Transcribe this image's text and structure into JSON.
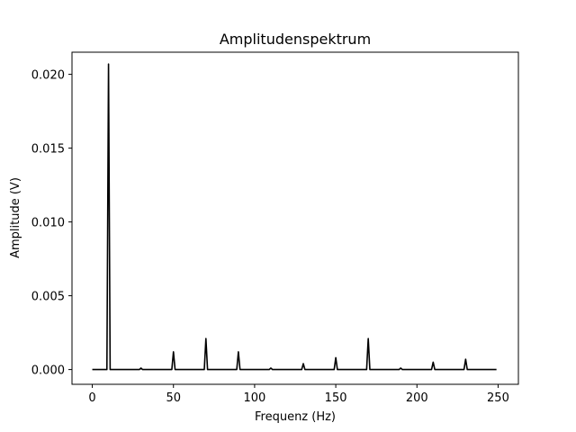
{
  "chart_data": {
    "type": "line",
    "title": "Amplitudenspektrum",
    "xlabel": "Frequenz (Hz)",
    "ylabel": "Amplitude  (V)",
    "xlim": [
      -12.5,
      262.5
    ],
    "ylim": [
      -0.001,
      0.0215
    ],
    "xticks": [
      0,
      50,
      100,
      150,
      200,
      250
    ],
    "xtick_labels": [
      "0",
      "50",
      "100",
      "150",
      "200",
      "250"
    ],
    "yticks": [
      0.0,
      0.005,
      0.01,
      0.015,
      0.02
    ],
    "ytick_labels": [
      "0.000",
      "0.005",
      "0.010",
      "0.015",
      "0.020"
    ],
    "grid": false,
    "legend": "none",
    "series": [
      {
        "color": "#000000",
        "x_range": [
          0,
          249
        ],
        "baseline": 0.0,
        "peaks": [
          {
            "x": 10,
            "y": 0.0207
          },
          {
            "x": 30,
            "y": 0.0001
          },
          {
            "x": 50,
            "y": 0.0012
          },
          {
            "x": 70,
            "y": 0.0021
          },
          {
            "x": 90,
            "y": 0.0012
          },
          {
            "x": 110,
            "y": 0.0001
          },
          {
            "x": 130,
            "y": 0.0004
          },
          {
            "x": 150,
            "y": 0.0008
          },
          {
            "x": 170,
            "y": 0.0021
          },
          {
            "x": 190,
            "y": 0.0001
          },
          {
            "x": 210,
            "y": 0.0005
          },
          {
            "x": 230,
            "y": 0.0007
          }
        ]
      }
    ]
  }
}
